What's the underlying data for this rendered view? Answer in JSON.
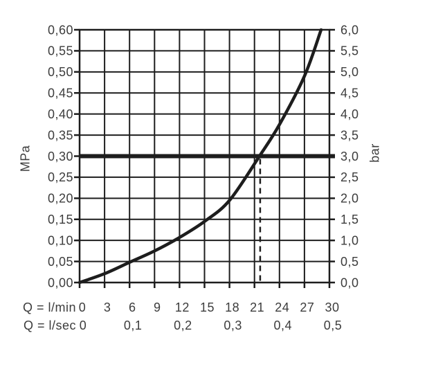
{
  "labels": {
    "y_left_unit": "MPa",
    "y_right_unit": "bar",
    "x_row1_label": "Q = l/min",
    "x_row2_label": "Q = l/sec"
  },
  "colors": {
    "line": "#1d1d1d",
    "text": "#3c3c3c",
    "background": "#ffffff"
  },
  "chart_data": {
    "type": "line",
    "title": "",
    "description": "Flow-pressure characteristic curve; operating point 0,30 MPa (3,0 bar) at approx. 21,6 l/min marked with thick horizontal line and dashed vertical line",
    "grid": true,
    "legend": false,
    "x_axis": {
      "row1_label": "Q = l/min",
      "row1_ticks": [
        "0",
        "3",
        "6",
        "9",
        "12",
        "15",
        "18",
        "21",
        "24",
        "27",
        "30"
      ],
      "row1_values": [
        0,
        3,
        6,
        9,
        12,
        15,
        18,
        21,
        24,
        27,
        30
      ],
      "row2_label": "Q = l/sec",
      "row2_ticks": [
        "0",
        "0,1",
        "0,2",
        "0,3",
        "0,4",
        "0,5"
      ],
      "row2_values_lmin": [
        0,
        6,
        12,
        18,
        24,
        30
      ],
      "range_lmin": [
        0,
        30
      ],
      "gridline_step_lmin": 3
    },
    "y_axis_left": {
      "unit": "MPa",
      "ticks": [
        "0,00",
        "0,05",
        "0,10",
        "0,15",
        "0,20",
        "0,25",
        "0,30",
        "0,35",
        "0,40",
        "0,45",
        "0,50",
        "0,55",
        "0,60"
      ],
      "values": [
        0,
        0.05,
        0.1,
        0.15,
        0.2,
        0.25,
        0.3,
        0.35,
        0.4,
        0.45,
        0.5,
        0.55,
        0.6
      ],
      "range": [
        0,
        0.6
      ],
      "gridline_step": 0.05
    },
    "y_axis_right": {
      "unit": "bar",
      "ticks": [
        "0,0",
        "0,5",
        "1,0",
        "1,5",
        "2,0",
        "2,5",
        "3,0",
        "3,5",
        "4,0",
        "4,5",
        "5,0",
        "5,5",
        "6,0"
      ],
      "values": [
        0,
        0.5,
        1,
        1.5,
        2,
        2.5,
        3,
        3.5,
        4,
        4.5,
        5,
        5.5,
        6
      ],
      "range": [
        0,
        6
      ]
    },
    "series": [
      {
        "name": "flow-pressure-curve",
        "q_lmin": [
          0,
          3,
          6,
          9,
          12,
          15,
          18,
          21.6,
          24,
          27,
          29
        ],
        "p_mpa": [
          0,
          0.021,
          0.048,
          0.075,
          0.107,
          0.145,
          0.195,
          0.3,
          0.375,
          0.49,
          0.6
        ]
      }
    ],
    "reference_line": {
      "orientation": "horizontal",
      "p_mpa": 0.3,
      "p_bar": 3.0,
      "style": "thick-solid"
    },
    "marker_line": {
      "orientation": "vertical",
      "q_lmin": 21.6,
      "p_from_mpa": 0,
      "p_to_mpa": 0.3,
      "style": "dashed"
    }
  }
}
